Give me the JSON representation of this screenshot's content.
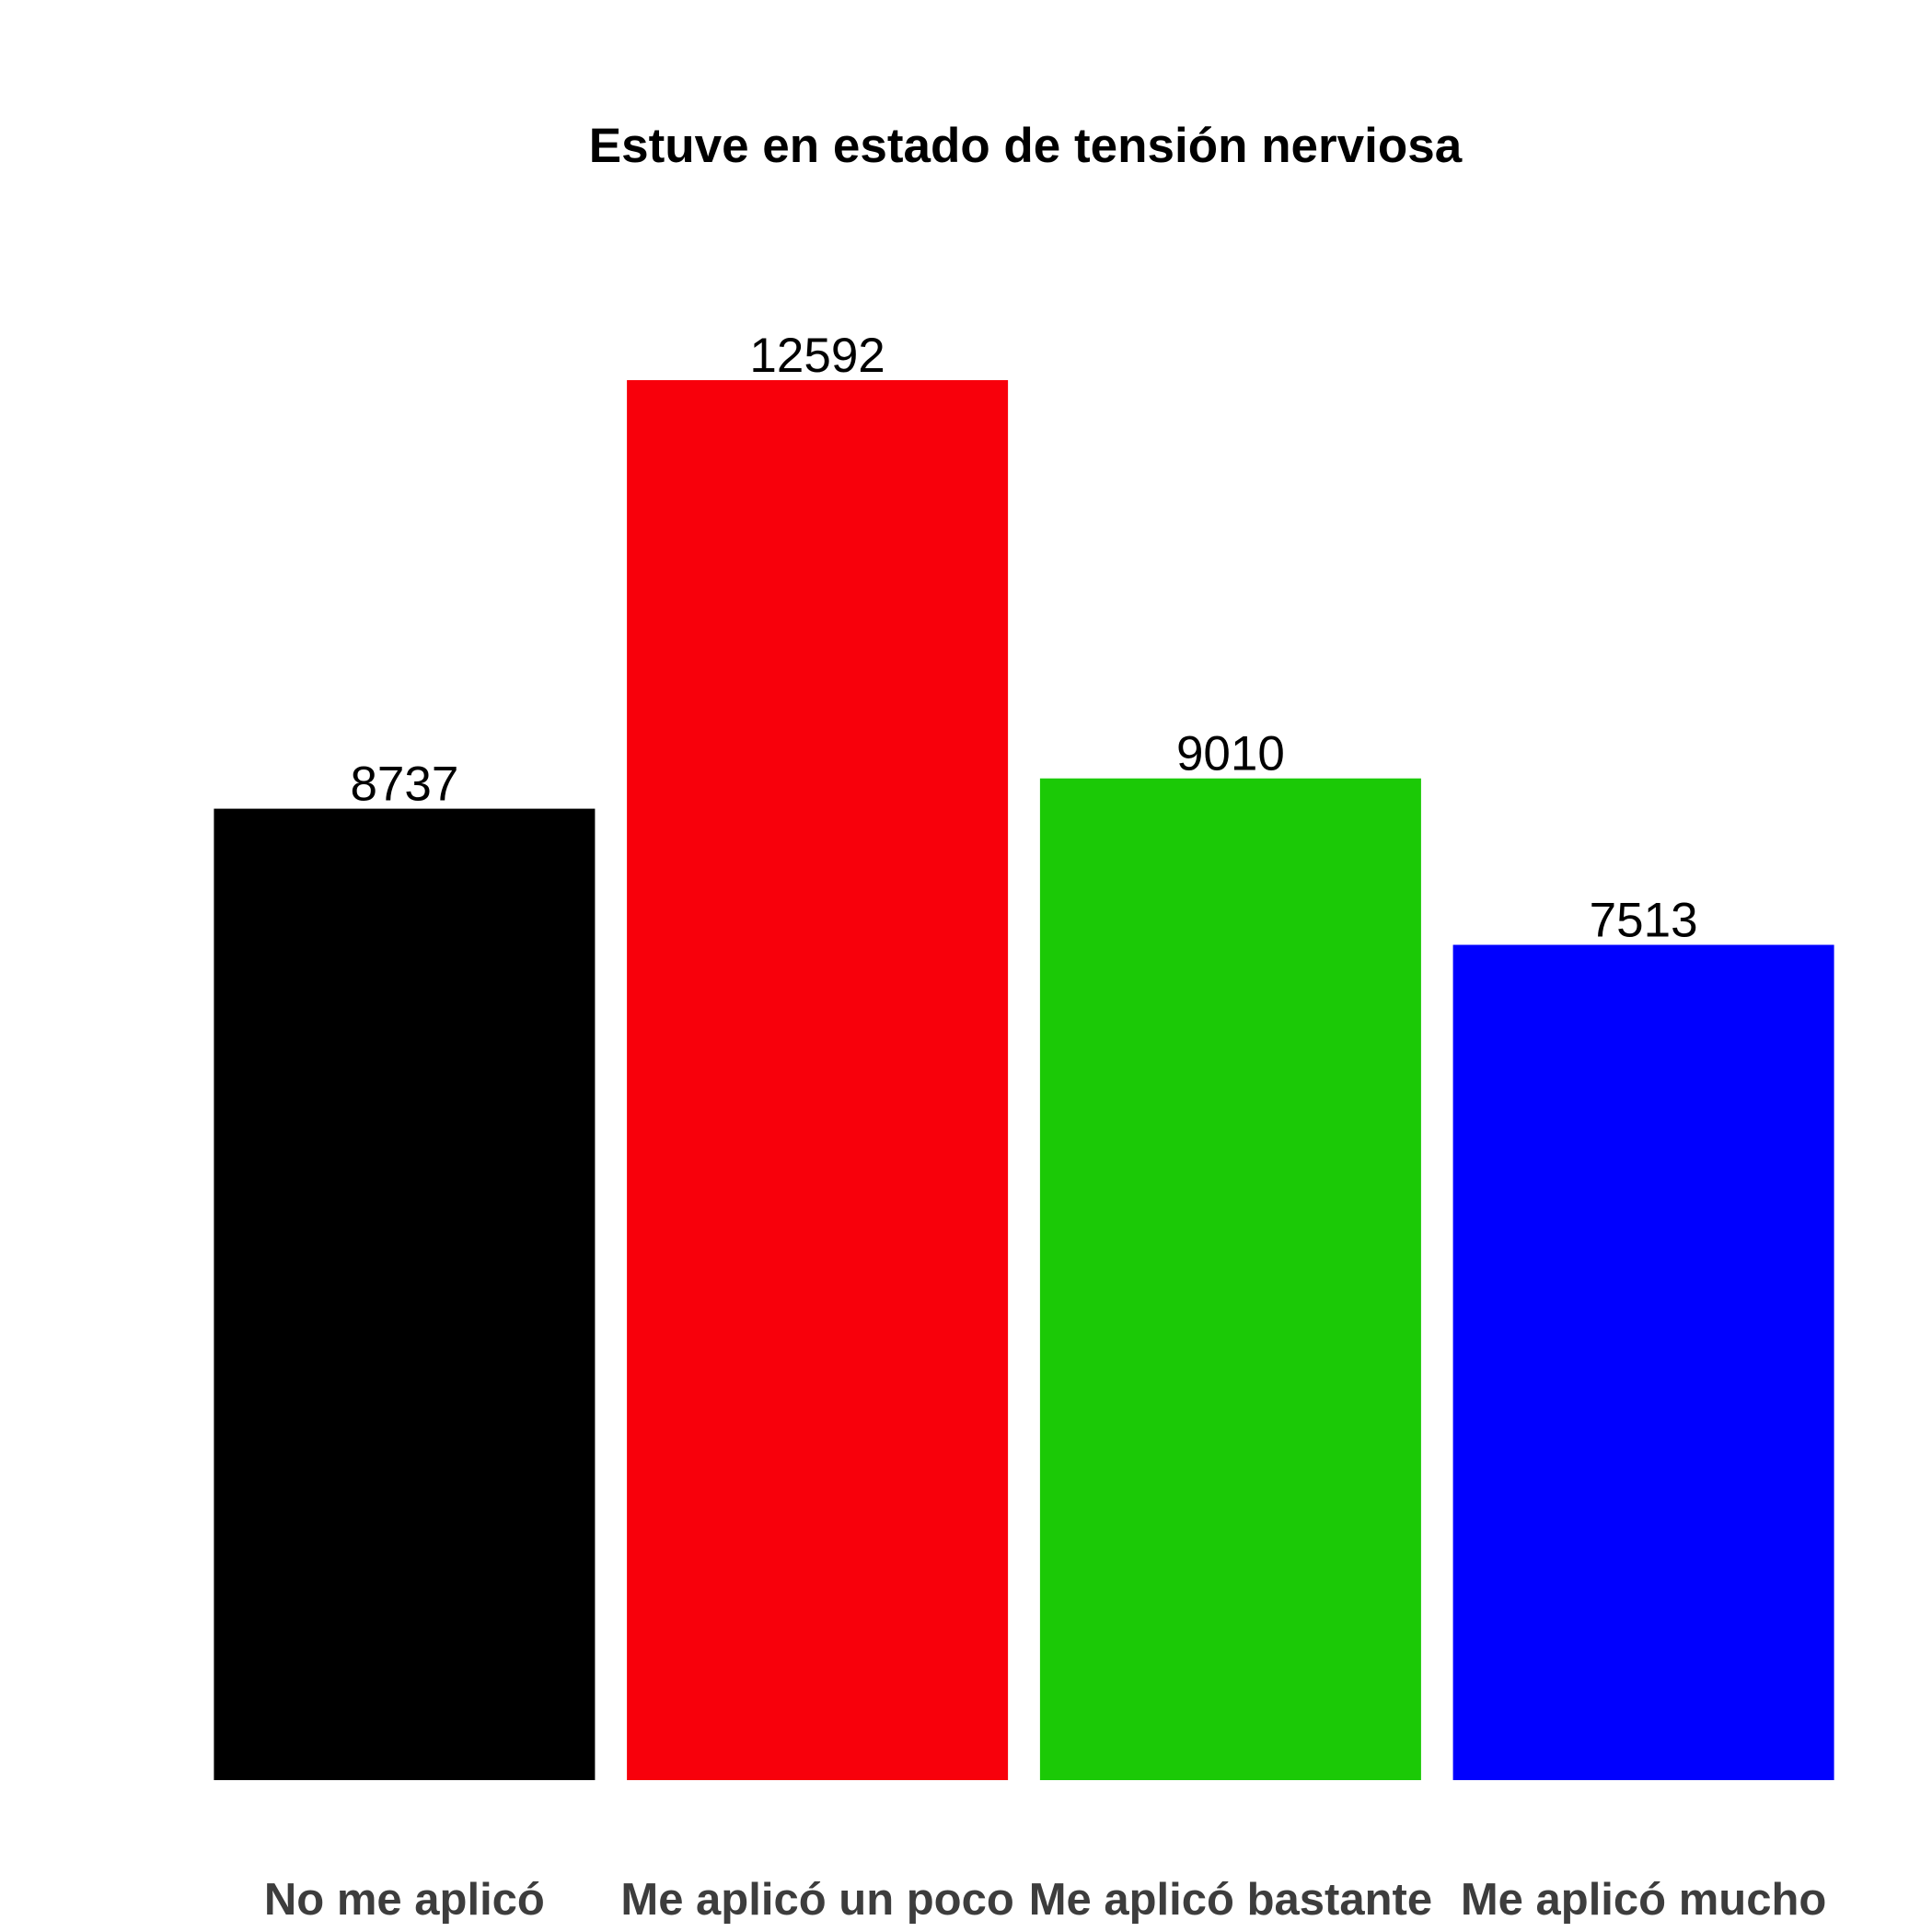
{
  "chart_data": {
    "type": "bar",
    "title": "Estuve en estado de tensión nerviosa",
    "categories": [
      "No me aplicó",
      "Me aplicó un poco",
      "Me aplicó bastante",
      "Me aplicó mucho"
    ],
    "values": [
      8737,
      12592,
      9010,
      7513
    ],
    "colors": [
      "#000000",
      "#f8000b",
      "#1bc906",
      "#0000ff"
    ],
    "xlabel": "",
    "ylabel": "",
    "ylim": [
      0,
      12592
    ],
    "grid": false,
    "legend": "none"
  }
}
